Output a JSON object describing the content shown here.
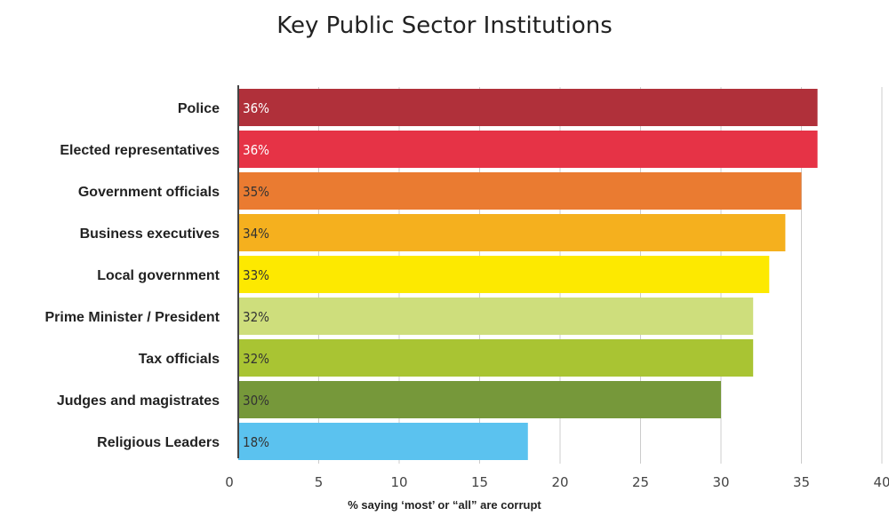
{
  "chart_data": {
    "type": "bar",
    "orientation": "horizontal",
    "title": "Key Public Sector Institutions",
    "xlabel": "% saying ‘most’ or “all” are corrupt",
    "ylabel": "",
    "xlim": [
      0,
      40
    ],
    "xticks": [
      0,
      5,
      10,
      15,
      20,
      25,
      30,
      35,
      40
    ],
    "grid": "vertical",
    "categories": [
      "Police",
      "Elected representatives",
      "Government officials",
      "Business executives",
      "Local government",
      "Prime Minister / President",
      "Tax officials",
      "Judges and magistrates",
      "Religious Leaders"
    ],
    "values": [
      36,
      36,
      35,
      34,
      33,
      32,
      32,
      30,
      18
    ],
    "data_labels": [
      "36%",
      "36%",
      "35%",
      "34%",
      "33%",
      "32%",
      "32%",
      "30%",
      "18%"
    ],
    "colors": [
      "#b0303a",
      "#e63346",
      "#ea7b31",
      "#f5b01e",
      "#fde900",
      "#cede7c",
      "#a9c433",
      "#76983a",
      "#5bc2ef"
    ],
    "label_colors": [
      "#ffffff",
      "#ffffff",
      "#333333",
      "#333333",
      "#333333",
      "#333333",
      "#333333",
      "#333333",
      "#333333"
    ]
  }
}
